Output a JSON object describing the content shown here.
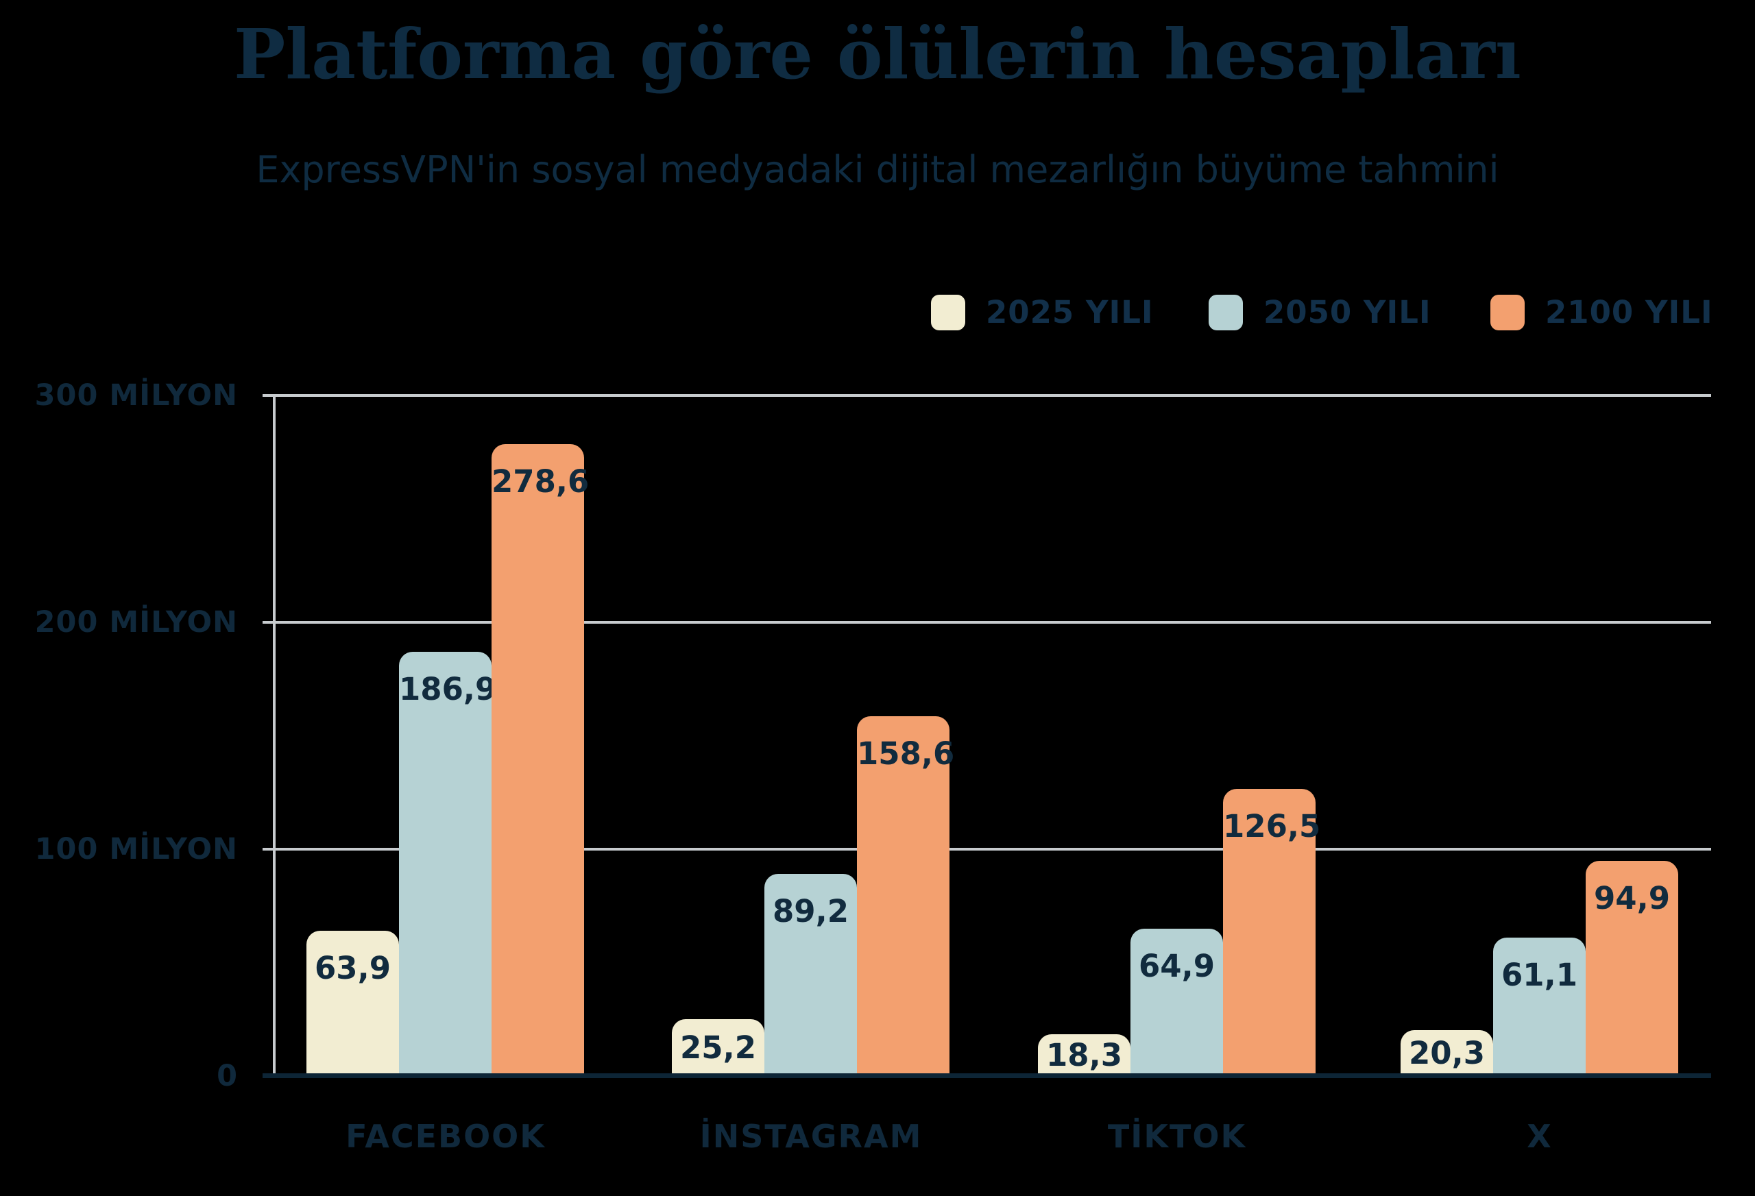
{
  "page": {
    "background": "#000000"
  },
  "chart_data": {
    "type": "bar",
    "title": "Platforma göre ölülerin hesapları",
    "subtitle": "ExpressVPN'in sosyal medyadaki dijital mezarlığın büyüme tahmini",
    "categories": [
      "FACEBOOK",
      "İNSTAGRAM",
      "TİKTOK",
      "X"
    ],
    "series": [
      {
        "name": "2025 YILI",
        "color": "#f2edd2",
        "values": [
          63.9,
          25.2,
          18.3,
          20.3
        ]
      },
      {
        "name": "2050 YILI",
        "color": "#b6d2d4",
        "values": [
          186.9,
          89.2,
          64.9,
          61.1
        ]
      },
      {
        "name": "2100 YILI",
        "color": "#f3a06f",
        "values": [
          278.6,
          158.6,
          126.5,
          94.9
        ]
      }
    ],
    "unit": "milyon",
    "decimal_separator": ",",
    "y_axis": {
      "range": [
        0,
        300
      ],
      "ticks": [
        {
          "value": 300,
          "label": "300 MİLYON"
        },
        {
          "value": 200,
          "label": "200 MİLYON"
        },
        {
          "value": 100,
          "label": "100 MİLYON"
        },
        {
          "value": 0,
          "label": "0"
        }
      ]
    },
    "grid": true,
    "legend_position": "top-right",
    "colors": {
      "text": "#10293c",
      "gridline": "#c7cbce",
      "axis_baseline": "#0d2536"
    }
  }
}
